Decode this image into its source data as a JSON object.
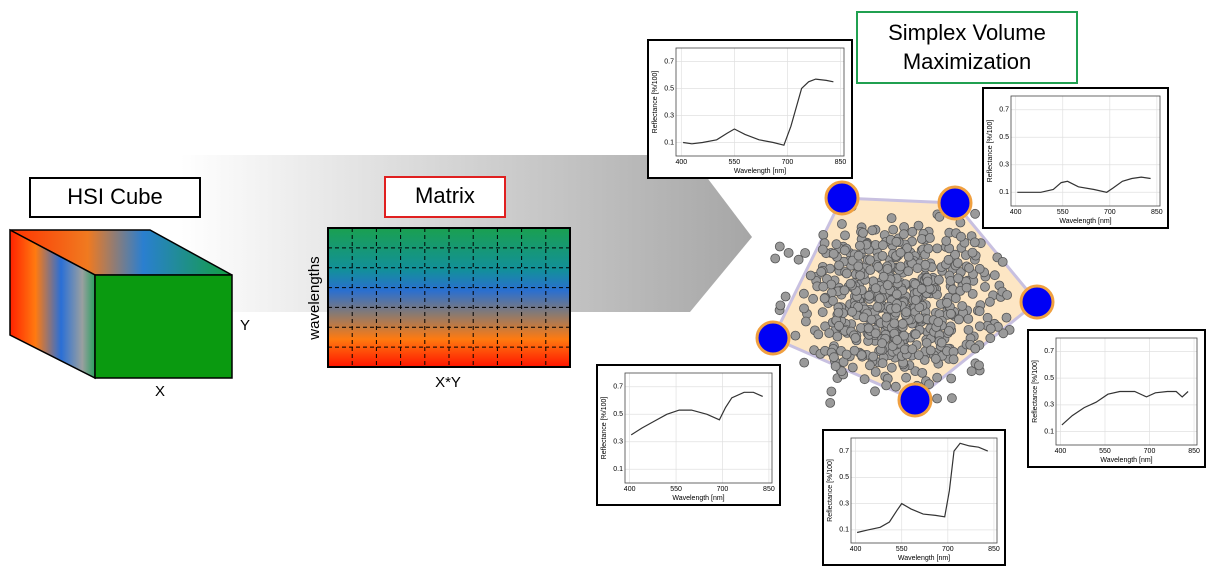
{
  "labels": {
    "hsi_cube": "HSI Cube",
    "x": "X",
    "y": "Y",
    "matrix": "Matrix",
    "wavelengths": "wavelengths",
    "xy": "X*Y",
    "svm_line1": "Simplex Volume",
    "svm_line2": "Maximization"
  },
  "chart_data": [
    {
      "type": "line",
      "xlabel": "Wavelength [nm]",
      "ylabel": "Reflectance [%/100]",
      "xlim": [
        385,
        860
      ],
      "ylim": [
        0,
        0.8
      ],
      "xticks": [
        400,
        550,
        700,
        850
      ],
      "yticks": [
        0.1,
        0.3,
        0.5,
        0.7
      ],
      "grid": true,
      "x": [
        405,
        430,
        460,
        500,
        530,
        550,
        580,
        620,
        660,
        690,
        710,
        740,
        760,
        780,
        810,
        830
      ],
      "series": [
        {
          "color": "#333333",
          "values": [
            0.1,
            0.09,
            0.1,
            0.12,
            0.17,
            0.2,
            0.16,
            0.12,
            0.1,
            0.08,
            0.22,
            0.5,
            0.55,
            0.57,
            0.56,
            0.55
          ]
        }
      ]
    },
    {
      "type": "line",
      "xlabel": "Wavelength [nm]",
      "ylabel": "Reflectance [%/100]",
      "xlim": [
        385,
        860
      ],
      "ylim": [
        0,
        0.8
      ],
      "xticks": [
        400,
        550,
        700,
        850
      ],
      "yticks": [
        0.1,
        0.3,
        0.5,
        0.7
      ],
      "grid": true,
      "x": [
        405,
        440,
        480,
        520,
        545,
        565,
        600,
        650,
        690,
        710,
        740,
        770,
        800,
        830
      ],
      "series": [
        {
          "color": "#333333",
          "values": [
            0.1,
            0.1,
            0.1,
            0.12,
            0.17,
            0.18,
            0.14,
            0.12,
            0.1,
            0.13,
            0.18,
            0.2,
            0.21,
            0.2
          ]
        }
      ]
    },
    {
      "type": "line",
      "xlabel": "Wavelength [nm]",
      "ylabel": "Reflectance [%/100]",
      "xlim": [
        385,
        860
      ],
      "ylim": [
        0,
        0.8
      ],
      "xticks": [
        400,
        550,
        700,
        850
      ],
      "yticks": [
        0.1,
        0.3,
        0.5,
        0.7
      ],
      "grid": true,
      "x": [
        405,
        440,
        480,
        520,
        560,
        600,
        650,
        690,
        710,
        730,
        770,
        800,
        830
      ],
      "series": [
        {
          "color": "#333333",
          "values": [
            0.35,
            0.4,
            0.45,
            0.5,
            0.53,
            0.53,
            0.5,
            0.46,
            0.55,
            0.62,
            0.66,
            0.66,
            0.63
          ]
        }
      ]
    },
    {
      "type": "line",
      "xlabel": "Wavelength [nm]",
      "ylabel": "Reflectance [%/100]",
      "xlim": [
        385,
        860
      ],
      "ylim": [
        0,
        0.8
      ],
      "xticks": [
        400,
        550,
        700,
        850
      ],
      "yticks": [
        0.1,
        0.3,
        0.5,
        0.7
      ],
      "grid": true,
      "x": [
        405,
        440,
        480,
        510,
        535,
        550,
        580,
        620,
        660,
        690,
        705,
        720,
        740,
        770,
        800,
        830
      ],
      "series": [
        {
          "color": "#333333",
          "values": [
            0.08,
            0.1,
            0.12,
            0.16,
            0.25,
            0.3,
            0.26,
            0.22,
            0.21,
            0.2,
            0.4,
            0.7,
            0.76,
            0.74,
            0.73,
            0.7
          ]
        }
      ]
    },
    {
      "type": "line",
      "xlabel": "Wavelength [nm]",
      "ylabel": "Reflectance [%/100]",
      "xlim": [
        385,
        860
      ],
      "ylim": [
        0,
        0.8
      ],
      "xticks": [
        400,
        550,
        700,
        850
      ],
      "yticks": [
        0.1,
        0.3,
        0.5,
        0.7
      ],
      "grid": true,
      "x": [
        405,
        440,
        480,
        520,
        560,
        600,
        650,
        690,
        720,
        760,
        790,
        810,
        830
      ],
      "series": [
        {
          "color": "#333333",
          "values": [
            0.15,
            0.22,
            0.28,
            0.32,
            0.38,
            0.4,
            0.4,
            0.36,
            0.39,
            0.4,
            0.4,
            0.36,
            0.4
          ]
        }
      ]
    }
  ]
}
